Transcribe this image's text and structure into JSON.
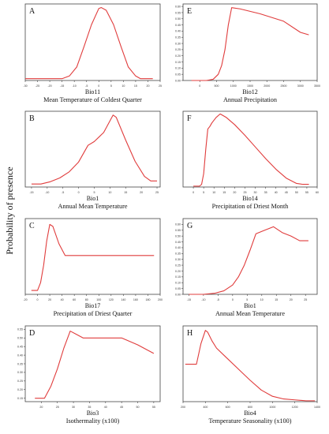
{
  "figure": {
    "y_axis_label": "Probability of presence",
    "line_color": "#e03c3c"
  },
  "chart_data": [
    {
      "type": "line",
      "panel_letter": "A",
      "title": "",
      "var_name": "Bio11",
      "xlabel": "Mean Temperature of Coldest Quarter",
      "ylabel": "",
      "xlim": [
        -30,
        25
      ],
      "ylim": [
        0,
        0.85
      ],
      "x_ticks": [
        -30,
        -25,
        -20,
        -15,
        -10,
        -5,
        0,
        5,
        10,
        15,
        20,
        25
      ],
      "y_ticks": [],
      "series": [
        {
          "x": [
            -30,
            -15,
            -12,
            -9,
            -6,
            -3,
            0,
            1,
            3,
            6,
            9,
            12,
            15,
            17,
            20,
            22
          ],
          "y": [
            0.02,
            0.02,
            0.05,
            0.15,
            0.38,
            0.62,
            0.8,
            0.81,
            0.78,
            0.62,
            0.38,
            0.15,
            0.05,
            0.02,
            0.02,
            0.02
          ]
        }
      ]
    },
    {
      "type": "line",
      "panel_letter": "E",
      "title": "",
      "var_name": "Bio12",
      "xlabel": "Annual Precipitation",
      "ylabel": "",
      "xlim": [
        -500,
        3500
      ],
      "ylim": [
        0,
        0.62
      ],
      "x_ticks": [
        0,
        500,
        1000,
        1500,
        2000,
        2500,
        3000,
        3500
      ],
      "y_ticks": [
        0,
        0.05,
        0.1,
        0.15,
        0.2,
        0.25,
        0.3,
        0.35,
        0.4,
        0.45,
        0.5,
        0.55,
        0.6
      ],
      "y_tick_labels": [
        "0.00",
        "0.05",
        "0.10",
        "0.15",
        "0.20",
        "0.25",
        "0.30",
        "0.35",
        "0.40",
        "0.45",
        "0.50",
        "0.55",
        "0.60"
      ],
      "series": [
        {
          "x": [
            -250,
            200,
            400,
            550,
            650,
            750,
            850,
            950,
            1200,
            1800,
            2500,
            3000,
            3250
          ],
          "y": [
            0.0,
            0.0,
            0.01,
            0.05,
            0.12,
            0.25,
            0.45,
            0.59,
            0.58,
            0.54,
            0.48,
            0.39,
            0.37
          ]
        }
      ]
    },
    {
      "type": "line",
      "panel_letter": "B",
      "title": "",
      "var_name": "Bio1",
      "xlabel": "Annual Mean Temperature",
      "ylabel": "",
      "xlim": [
        -17,
        26
      ],
      "ylim": [
        0,
        1.0
      ],
      "x_ticks": [
        -15,
        -10,
        -5,
        0,
        5,
        10,
        15,
        20,
        25
      ],
      "y_ticks": [],
      "series": [
        {
          "x": [
            -15,
            -12,
            -9,
            -6,
            -3,
            0,
            3,
            5,
            8,
            11,
            12,
            15,
            18,
            21,
            23,
            25
          ],
          "y": [
            0.04,
            0.04,
            0.07,
            0.12,
            0.2,
            0.33,
            0.55,
            0.6,
            0.72,
            0.95,
            0.92,
            0.62,
            0.34,
            0.14,
            0.08,
            0.08
          ]
        }
      ]
    },
    {
      "type": "line",
      "panel_letter": "F",
      "title": "",
      "var_name": "Bio14",
      "xlabel": "Precipitation of Driest Month",
      "ylabel": "",
      "xlim": [
        -5,
        60
      ],
      "ylim": [
        0,
        0.85
      ],
      "x_ticks": [
        0,
        5,
        10,
        15,
        20,
        25,
        30,
        35,
        40,
        45,
        50,
        55,
        60
      ],
      "y_ticks": [],
      "series": [
        {
          "x": [
            0,
            3,
            4,
            5,
            6,
            7,
            8,
            9,
            11,
            13,
            16,
            20,
            25,
            30,
            35,
            40,
            45,
            50,
            53,
            56
          ],
          "y": [
            0.01,
            0.01,
            0.03,
            0.15,
            0.42,
            0.65,
            0.68,
            0.72,
            0.78,
            0.82,
            0.78,
            0.7,
            0.58,
            0.45,
            0.32,
            0.2,
            0.1,
            0.04,
            0.03,
            0.03
          ]
        }
      ]
    },
    {
      "type": "line",
      "panel_letter": "C",
      "title": "",
      "var_name": "Bio17",
      "xlabel": "Precipitation of Driest Quarter",
      "ylabel": "",
      "xlim": [
        -20,
        200
      ],
      "ylim": [
        0,
        0.78
      ],
      "x_ticks": [
        -20,
        0,
        20,
        40,
        60,
        80,
        100,
        120,
        140,
        160,
        180,
        200
      ],
      "y_ticks": [],
      "series": [
        {
          "x": [
            -10,
            0,
            5,
            10,
            15,
            20,
            25,
            35,
            45,
            52,
            190
          ],
          "y": [
            0.04,
            0.04,
            0.12,
            0.3,
            0.55,
            0.72,
            0.7,
            0.52,
            0.4,
            0.4,
            0.4
          ]
        }
      ]
    },
    {
      "type": "line",
      "panel_letter": "G",
      "title": "",
      "var_name": "Bio1",
      "xlabel": "Annual Mean Temperature",
      "ylabel": "",
      "xlim": [
        -17,
        29
      ],
      "ylim": [
        0,
        0.65
      ],
      "x_ticks": [
        -15,
        -10,
        -5,
        0,
        5,
        10,
        15,
        20,
        25
      ],
      "y_ticks": [
        0,
        0.05,
        0.1,
        0.15,
        0.2,
        0.25,
        0.3,
        0.35,
        0.4,
        0.45,
        0.5,
        0.55,
        0.6
      ],
      "y_tick_labels": [
        "0.00",
        "0.05",
        "0.10",
        "0.15",
        "0.20",
        "0.25",
        "0.30",
        "0.35",
        "0.40",
        "0.45",
        "0.50",
        "0.55",
        "0.60"
      ],
      "series": [
        {
          "x": [
            -15,
            -10,
            -6,
            -3,
            0,
            2,
            4,
            6,
            8,
            11,
            14,
            17,
            20,
            23,
            26
          ],
          "y": [
            0.0,
            0.0,
            0.01,
            0.03,
            0.08,
            0.15,
            0.25,
            0.38,
            0.52,
            0.55,
            0.58,
            0.53,
            0.5,
            0.46,
            0.46
          ]
        }
      ]
    },
    {
      "type": "line",
      "panel_letter": "D",
      "title": "",
      "var_name": "Bio3",
      "xlabel": "Isothermality (x100)",
      "ylabel": "",
      "xlim": [
        15,
        57
      ],
      "ylim": [
        0.13,
        0.57
      ],
      "x_ticks": [
        20,
        25,
        30,
        35,
        40,
        45,
        50,
        55
      ],
      "y_ticks": [
        0.15,
        0.2,
        0.25,
        0.3,
        0.35,
        0.4,
        0.45,
        0.5,
        0.55
      ],
      "y_tick_labels": [
        "0.15",
        "0.20",
        "0.25",
        "0.30",
        "0.35",
        "0.40",
        "0.45",
        "0.50",
        "0.55"
      ],
      "series": [
        {
          "x": [
            18,
            21,
            23,
            25,
            27,
            29,
            31,
            33,
            40,
            45,
            50,
            55
          ],
          "y": [
            0.15,
            0.15,
            0.22,
            0.32,
            0.44,
            0.54,
            0.52,
            0.5,
            0.5,
            0.5,
            0.46,
            0.41
          ]
        }
      ]
    },
    {
      "type": "line",
      "panel_letter": "H",
      "title": "",
      "var_name": "Bio4",
      "xlabel": "Temperature Seasonality (x100)",
      "ylabel": "",
      "xlim": [
        200,
        1400
      ],
      "ylim": [
        0,
        0.85
      ],
      "x_ticks": [
        200,
        400,
        600,
        800,
        1000,
        1200,
        1400
      ],
      "y_ticks": [],
      "series": [
        {
          "x": [
            220,
            320,
            360,
            400,
            420,
            460,
            500,
            600,
            700,
            800,
            900,
            1000,
            1100,
            1200,
            1300,
            1380
          ],
          "y": [
            0.42,
            0.42,
            0.65,
            0.8,
            0.78,
            0.68,
            0.6,
            0.48,
            0.36,
            0.24,
            0.13,
            0.06,
            0.03,
            0.02,
            0.01,
            0.01
          ]
        }
      ]
    }
  ]
}
